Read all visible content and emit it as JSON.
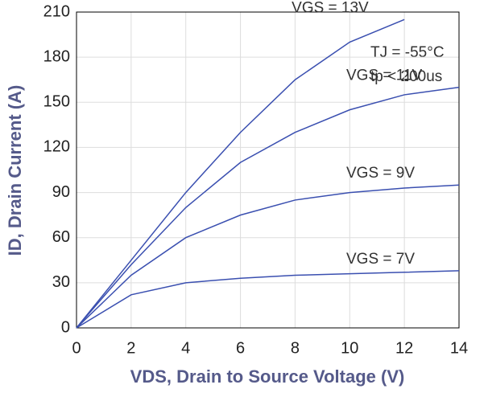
{
  "chart_data": {
    "type": "line",
    "x_label": "VDS, Drain to Source Voltage (V)",
    "y_label": "ID, Drain Current (A)",
    "x": [
      0,
      2,
      4,
      6,
      8,
      10,
      12,
      14
    ],
    "series": [
      {
        "name": "VGS = 13V",
        "color": "#3a4fb0",
        "values": [
          0,
          45,
          90,
          130,
          165,
          190,
          205,
          null
        ]
      },
      {
        "name": "VGS = 11V",
        "color": "#3a4fb0",
        "values": [
          0,
          42,
          80,
          110,
          130,
          145,
          155,
          160
        ]
      },
      {
        "name": "VGS = 9V",
        "color": "#3a4fb0",
        "values": [
          0,
          35,
          60,
          75,
          85,
          90,
          93,
          95
        ]
      },
      {
        "name": "VGS = 7V",
        "color": "#3a4fb0",
        "values": [
          0,
          22,
          30,
          33,
          35,
          36,
          37,
          38
        ]
      }
    ],
    "annotations": [
      "TJ = -55°C",
      "tp < 200us"
    ],
    "xlim": [
      0,
      14
    ],
    "xticks": [
      0,
      2,
      4,
      6,
      8,
      10,
      12,
      14
    ],
    "ylim": [
      0,
      210
    ],
    "yticks": [
      0,
      30,
      60,
      90,
      120,
      150,
      180,
      210
    ],
    "grid": true
  }
}
